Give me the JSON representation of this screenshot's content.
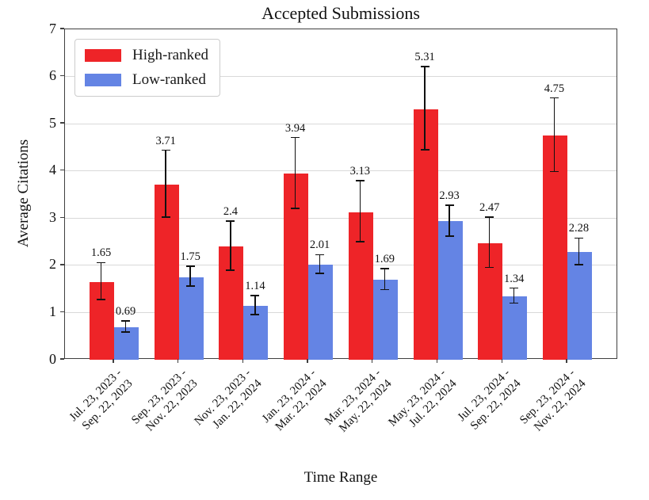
{
  "title": "Accepted Submissions",
  "legend": {
    "high_label": "High-ranked",
    "low_label": "Low-ranked"
  },
  "axes": {
    "ylabel": "Average Citations",
    "xlabel": "Time Range",
    "yticks": [
      "0",
      "1",
      "2",
      "3",
      "4",
      "5",
      "6",
      "7"
    ]
  },
  "colors": {
    "high": "#ee2428",
    "low": "#6484e4",
    "grid": "#d9d9d9",
    "axis": "#3f3f3f",
    "error_bar": "#111111"
  },
  "chart_data": {
    "type": "bar",
    "title": "Accepted Submissions",
    "xlabel": "Time Range",
    "ylabel": "Average Citations",
    "ylim": [
      0,
      7
    ],
    "grid": "horizontal",
    "legend_position": "upper left",
    "categories": [
      [
        "Jul. 23, 2023 -",
        "Sep. 22, 2023"
      ],
      [
        "Sep. 23, 2023 -",
        "Nov. 22, 2023"
      ],
      [
        "Nov. 23, 2023 -",
        "Jan. 22, 2024"
      ],
      [
        "Jan. 23, 2024 -",
        "Mar. 22, 2024"
      ],
      [
        "Mar. 23, 2024 -",
        "May. 22, 2024"
      ],
      [
        "May. 23, 2024 -",
        "Jul. 22, 2024"
      ],
      [
        "Jul. 23, 2024 -",
        "Sep. 22, 2024"
      ],
      [
        "Sep. 23, 2024 -",
        "Nov. 22, 2024"
      ]
    ],
    "series": [
      {
        "name": "High-ranked",
        "color": "#ee2428",
        "values": [
          1.65,
          3.71,
          2.4,
          3.94,
          3.13,
          5.31,
          2.47,
          4.75
        ],
        "labels": [
          "1.65",
          "3.71",
          "2.4",
          "3.94",
          "3.13",
          "5.31",
          "2.47",
          "4.75"
        ],
        "errors": [
          0.39,
          0.71,
          0.52,
          0.75,
          0.65,
          0.88,
          0.53,
          0.78
        ]
      },
      {
        "name": "Low-ranked",
        "color": "#6484e4",
        "values": [
          0.69,
          1.75,
          1.14,
          2.01,
          1.69,
          2.93,
          1.34,
          2.28
        ],
        "labels": [
          "0.69",
          "1.75",
          "1.14",
          "2.01",
          "1.69",
          "2.93",
          "1.34",
          "2.28"
        ],
        "errors": [
          0.12,
          0.21,
          0.2,
          0.2,
          0.22,
          0.33,
          0.16,
          0.28
        ]
      }
    ]
  }
}
